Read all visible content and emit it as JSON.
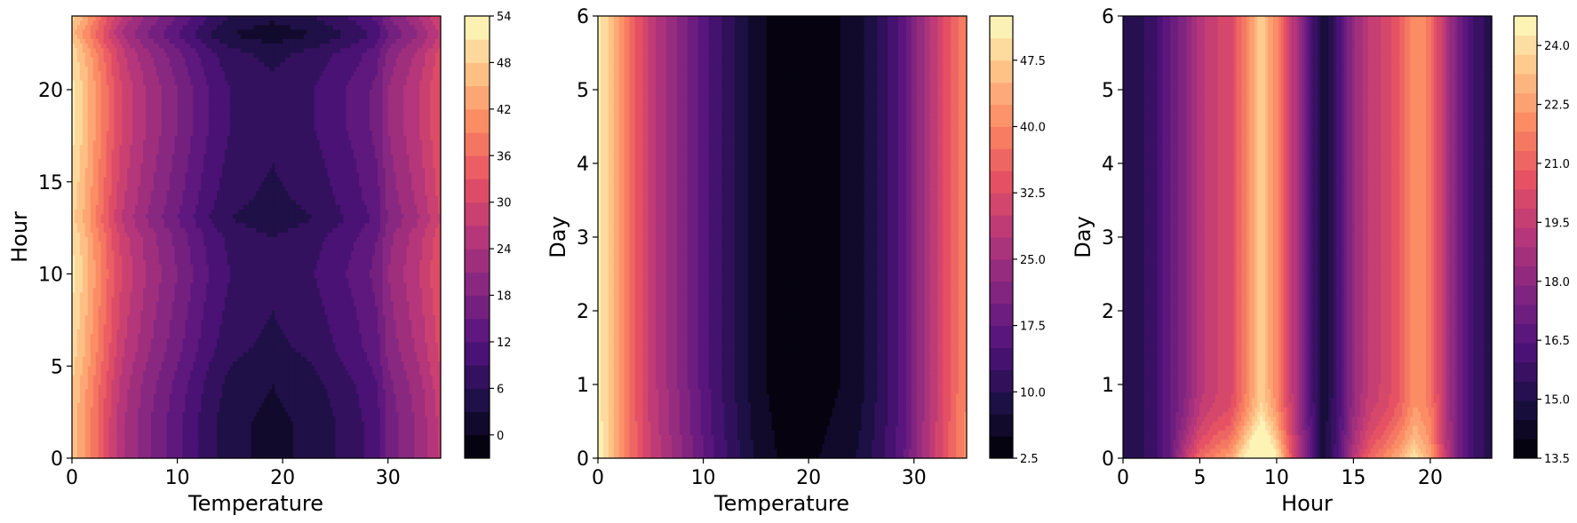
{
  "figure": {
    "colormap": "magma",
    "colormap_stops": [
      "#000004",
      "#1c1044",
      "#4f127b",
      "#812581",
      "#b5367a",
      "#e55064",
      "#fb8761",
      "#fec287",
      "#fcfdbf"
    ]
  },
  "chart_data": [
    {
      "type": "heatmap",
      "title": "",
      "xlabel": "Temperature",
      "ylabel": "Hour",
      "xlim": [
        0,
        35
      ],
      "ylim": [
        0,
        24
      ],
      "xticks": [
        0,
        10,
        20,
        30
      ],
      "yticks": [
        0,
        5,
        10,
        15,
        20
      ],
      "xtick_labels": [
        "0",
        "10",
        "20",
        "30"
      ],
      "ytick_labels": [
        "0",
        "5",
        "10",
        "15",
        "20"
      ],
      "colorbar": {
        "min": -3,
        "max": 54,
        "ticks": [
          0,
          6,
          12,
          18,
          24,
          30,
          36,
          42,
          48,
          54
        ],
        "tick_labels": [
          "0",
          "6",
          "12",
          "18",
          "24",
          "30",
          "36",
          "42",
          "48",
          "54"
        ],
        "levels": 19
      },
      "x_profile": {
        "x": [
          0,
          1,
          2,
          3,
          4,
          5,
          7,
          9,
          11,
          13,
          15,
          17,
          19,
          21,
          23,
          25,
          27,
          29,
          30,
          31,
          32,
          33,
          34,
          35
        ],
        "values": [
          49,
          45,
          40,
          35,
          30,
          26,
          21,
          17,
          13,
          9,
          6,
          5,
          4,
          5,
          6,
          8,
          10,
          13,
          18,
          20,
          22,
          24,
          27,
          30
        ]
      },
      "y_profile": {
        "y": [
          0,
          2,
          4,
          6,
          8,
          10,
          12,
          13,
          14,
          16,
          18,
          20,
          22,
          23,
          24
        ],
        "values": [
          -2,
          -2,
          -1,
          1,
          2,
          3,
          2,
          0,
          1,
          2,
          3,
          3,
          1,
          -3,
          0
        ]
      }
    },
    {
      "type": "heatmap",
      "title": "",
      "xlabel": "Temperature",
      "ylabel": "Day",
      "xlim": [
        0,
        35
      ],
      "ylim": [
        0,
        6
      ],
      "xticks": [
        0,
        10,
        20,
        30
      ],
      "yticks": [
        0,
        1,
        2,
        3,
        4,
        5,
        6
      ],
      "xtick_labels": [
        "0",
        "10",
        "20",
        "30"
      ],
      "ytick_labels": [
        "0",
        "1",
        "2",
        "3",
        "4",
        "5",
        "6"
      ],
      "colorbar": {
        "min": 2.5,
        "max": 52.5,
        "ticks": [
          2.5,
          10.0,
          17.5,
          25.0,
          32.5,
          40.0,
          47.5
        ],
        "tick_labels": [
          "2.5",
          "10.0",
          "17.5",
          "25.0",
          "32.5",
          "40.0",
          "47.5"
        ],
        "levels": 20
      },
      "x_profile": {
        "x": [
          0,
          1,
          2,
          3,
          4,
          5,
          7,
          9,
          11,
          13,
          15,
          17,
          19,
          21,
          23,
          25,
          27,
          29,
          30,
          31,
          32,
          33,
          34,
          35
        ],
        "values": [
          51,
          47,
          42,
          37,
          33,
          29,
          24,
          19,
          14,
          10,
          6,
          4,
          3,
          4,
          5,
          7,
          11,
          16,
          21,
          25,
          29,
          33,
          37,
          40
        ]
      },
      "y_profile": {
        "y": [
          0,
          1,
          2,
          3,
          4,
          5,
          6
        ],
        "values": [
          1,
          0,
          0,
          0,
          0,
          0,
          0
        ]
      }
    },
    {
      "type": "heatmap",
      "title": "",
      "xlabel": "Hour",
      "ylabel": "Day",
      "xlim": [
        0,
        24
      ],
      "ylim": [
        0,
        6
      ],
      "xticks": [
        0,
        5,
        10,
        15,
        20
      ],
      "yticks": [
        0,
        1,
        2,
        3,
        4,
        5,
        6
      ],
      "xtick_labels": [
        "0",
        "5",
        "10",
        "15",
        "20"
      ],
      "ytick_labels": [
        "0",
        "1",
        "2",
        "3",
        "4",
        "5",
        "6"
      ],
      "colorbar": {
        "min": 13.5,
        "max": 24.75,
        "ticks": [
          13.5,
          15.0,
          16.5,
          18.0,
          19.5,
          21.0,
          22.5,
          24.0
        ],
        "tick_labels": [
          "13.5",
          "15.0",
          "16.5",
          "18.0",
          "19.5",
          "21.0",
          "22.5",
          "24.0"
        ],
        "levels": 23
      },
      "x_profile": {
        "x": [
          0,
          1,
          2,
          3,
          4,
          5,
          6,
          7,
          8,
          9,
          10,
          11,
          12,
          13,
          14,
          15,
          16,
          17,
          18,
          19,
          20,
          21,
          22,
          23,
          24
        ],
        "values": [
          15.0,
          15.2,
          15.8,
          16.8,
          17.8,
          19.2,
          19.8,
          20.1,
          21.8,
          23.6,
          22.0,
          19.5,
          17.0,
          14.5,
          16.0,
          18.2,
          19.5,
          20.0,
          20.8,
          22.2,
          21.6,
          19.0,
          17.0,
          15.8,
          15.0
        ],
        "note_peak_days": [
          0,
          1
        ],
        "bottom_boost": [
          0,
          0,
          0,
          0,
          1.5,
          2.0,
          2.2,
          2.5,
          3.0,
          3.5,
          2.5,
          1.0,
          0.5,
          0,
          0.5,
          1.0,
          1.5,
          2.0,
          2.2,
          2.0,
          1.0,
          0.5,
          0,
          0,
          0
        ]
      },
      "y_profile": {
        "y": [
          0,
          1,
          2,
          3,
          4,
          5,
          6
        ],
        "values": [
          0,
          0,
          0,
          0,
          0,
          0,
          0
        ]
      }
    }
  ]
}
